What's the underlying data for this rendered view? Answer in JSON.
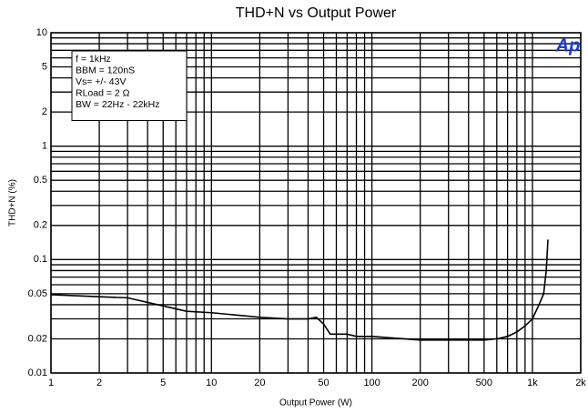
{
  "chart_data": {
    "type": "line",
    "title": "THD+N vs Output Power",
    "xlabel": "Output Power (W)",
    "ylabel": "THD+N (%)",
    "logo": "Ap",
    "annotation": [
      "f = 1kHz",
      "BBM = 120nS",
      "Vs= +/- 43V",
      "RLoad = 2 Ω",
      "BW = 22Hz - 22kHz"
    ],
    "xscale": "log",
    "yscale": "log",
    "grid": true,
    "xlim": [
      1,
      2000
    ],
    "ylim": [
      0.01,
      10
    ],
    "xticks": [
      1,
      2,
      5,
      10,
      20,
      50,
      100,
      200,
      500,
      {
        "value": 1000,
        "label": "1k"
      },
      {
        "value": 2000,
        "label": "2k"
      }
    ],
    "yticks": [
      0.01,
      0.02,
      0.05,
      0.1,
      0.2,
      0.5,
      1,
      2,
      5,
      10
    ],
    "xminor": [
      3,
      4,
      6,
      7,
      8,
      9,
      30,
      40,
      60,
      70,
      80,
      90,
      300,
      400,
      600,
      700,
      800,
      900
    ],
    "yminor": [
      0.03,
      0.04,
      0.06,
      0.07,
      0.08,
      0.09,
      0.3,
      0.4,
      0.6,
      0.7,
      0.8,
      0.9,
      3,
      4,
      6,
      7,
      8,
      9
    ],
    "x": [
      1,
      2,
      3,
      5,
      7,
      10,
      20,
      30,
      40,
      45,
      50,
      55,
      70,
      80,
      100,
      200,
      300,
      500,
      600,
      700,
      800,
      900,
      1000,
      1100,
      1175,
      1220,
      1250
    ],
    "series": [
      {
        "name": "THD+N",
        "color": "#000000",
        "values": [
          0.049,
          0.047,
          0.046,
          0.039,
          0.035,
          0.034,
          0.031,
          0.03,
          0.03,
          0.031,
          0.027,
          0.022,
          0.022,
          0.021,
          0.021,
          0.0195,
          0.0195,
          0.0195,
          0.02,
          0.021,
          0.023,
          0.026,
          0.03,
          0.04,
          0.05,
          0.08,
          0.15
        ]
      }
    ]
  }
}
